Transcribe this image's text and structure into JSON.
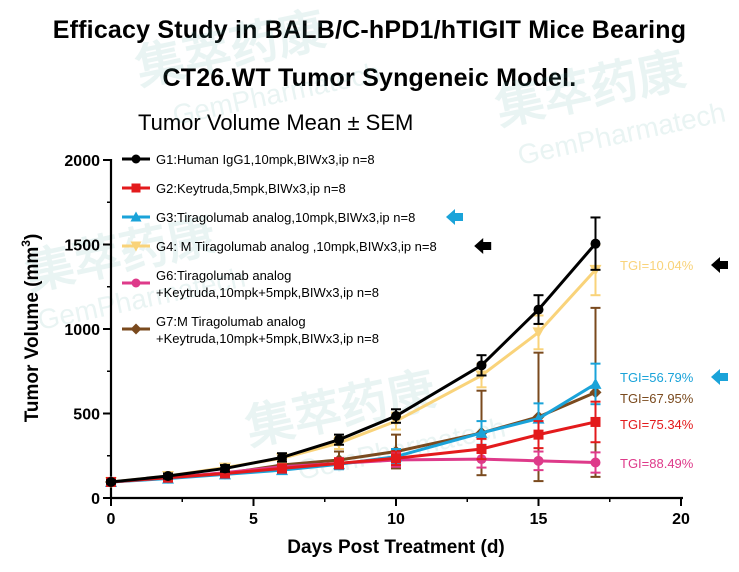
{
  "title_line1": "Efficacy Study in BALB/C-hPD1/hTIGIT Mice Bearing",
  "title_line2": "CT26.WT Tumor Syngeneic Model.",
  "watermark": [
    "集萃药康",
    "GemPharmatech"
  ],
  "chart_data": {
    "type": "line",
    "title": "Tumor Volume Mean ± SEM",
    "xlabel": "Days Post Treatment (d)",
    "ylabel_main": "Tumor Volume (mm",
    "ylabel_sup": "3",
    "ylabel_close": ")",
    "xlim": [
      0,
      20
    ],
    "ylim": [
      0,
      2000
    ],
    "xticks": [
      0,
      5,
      10,
      15,
      20
    ],
    "yticks": [
      0,
      500,
      1000,
      1500,
      2000
    ],
    "series": [
      {
        "name": "G1:Human IgG1,10mpk,BIWx3,ip n=8",
        "color": "#000000",
        "marker": "circle",
        "arrow": false,
        "x": [
          0,
          2,
          4,
          6,
          8,
          10,
          13,
          15,
          17
        ],
        "y": [
          95,
          130,
          175,
          240,
          345,
          485,
          785,
          1115,
          1505
        ],
        "err": [
          10,
          15,
          20,
          25,
          30,
          40,
          60,
          85,
          155
        ],
        "tgi": null
      },
      {
        "name": "G2:Keytruda,5mpk,BIWx3,ip n=8",
        "color": "#e31a1c",
        "marker": "square",
        "arrow": false,
        "x": [
          0,
          2,
          4,
          6,
          8,
          10,
          13,
          15,
          17
        ],
        "y": [
          95,
          120,
          145,
          175,
          205,
          235,
          290,
          375,
          450
        ],
        "err": [
          10,
          15,
          20,
          25,
          30,
          40,
          60,
          80,
          120
        ],
        "tgi": "TGI=75.34%"
      },
      {
        "name": "G3:Tiragolumab analog,10mpk,BIWx3,ip n=8",
        "color": "#1aa3d9",
        "marker": "triangle",
        "arrow": true,
        "x": [
          0,
          2,
          4,
          6,
          8,
          10,
          13,
          15,
          17
        ],
        "y": [
          95,
          115,
          140,
          165,
          200,
          245,
          385,
          470,
          675
        ],
        "err": [
          10,
          12,
          15,
          20,
          30,
          45,
          70,
          90,
          120
        ],
        "tgi": "TGI=56.79%"
      },
      {
        "name": "G4: M Tiragolumab analog ,10mpk,BIWx3,ip n=8",
        "color": "#f9d37a",
        "marker": "invtriangle",
        "arrow": true,
        "x": [
          0,
          2,
          4,
          6,
          8,
          10,
          13,
          15,
          17
        ],
        "y": [
          95,
          130,
          180,
          235,
          325,
          455,
          725,
          980,
          1350
        ],
        "err": [
          10,
          15,
          20,
          25,
          35,
          50,
          70,
          100,
          150
        ],
        "tgi": "TGI=10.04%"
      },
      {
        "name": "G6:Tiragolumab analog\n+Keytruda,10mpk+5mpk,BIWx3,ip n=8",
        "color": "#de3a8a",
        "marker": "circle",
        "arrow": false,
        "x": [
          0,
          2,
          4,
          6,
          8,
          10,
          13,
          15,
          17
        ],
        "y": [
          95,
          120,
          150,
          185,
          205,
          225,
          230,
          220,
          210
        ],
        "err": [
          10,
          15,
          20,
          25,
          30,
          40,
          50,
          55,
          60
        ],
        "tgi": "TGI=88.49%"
      },
      {
        "name": "G7:M Tiragolumab analog\n+Keytruda,10mpk+5mpk,BIWx3,ip n=8",
        "color": "#7a4a1e",
        "marker": "diamond",
        "arrow": false,
        "x": [
          0,
          2,
          4,
          6,
          8,
          10,
          13,
          15,
          17
        ],
        "y": [
          95,
          120,
          145,
          195,
          225,
          275,
          385,
          480,
          625
        ],
        "err": [
          10,
          15,
          20,
          30,
          50,
          100,
          250,
          380,
          500
        ],
        "tgi": "TGI=67.95%"
      }
    ]
  }
}
